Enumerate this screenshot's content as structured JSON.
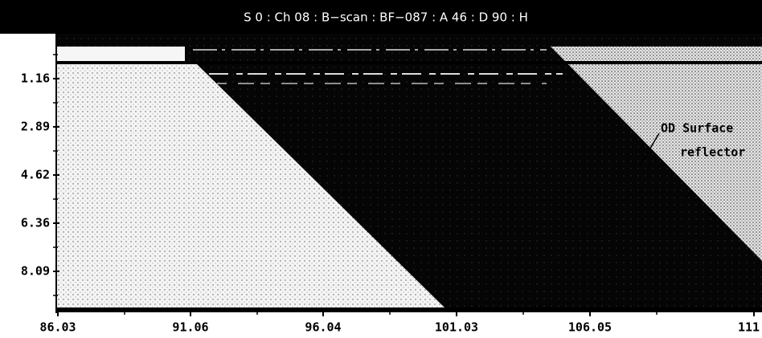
{
  "header": {
    "title": "S 0 : Ch 08 : B−scan : BF−087 : A 46 : D 90 : H"
  },
  "y_axis": {
    "ticks": [
      "1.16",
      "2.89",
      "4.62",
      "6.36",
      "8.09"
    ]
  },
  "x_axis": {
    "ticks": [
      "86.03",
      "91.06",
      "96.04",
      "101.03",
      "106.05",
      "111."
    ]
  },
  "annotation": {
    "lines": [
      "OD Surface",
      "reflector"
    ]
  }
}
